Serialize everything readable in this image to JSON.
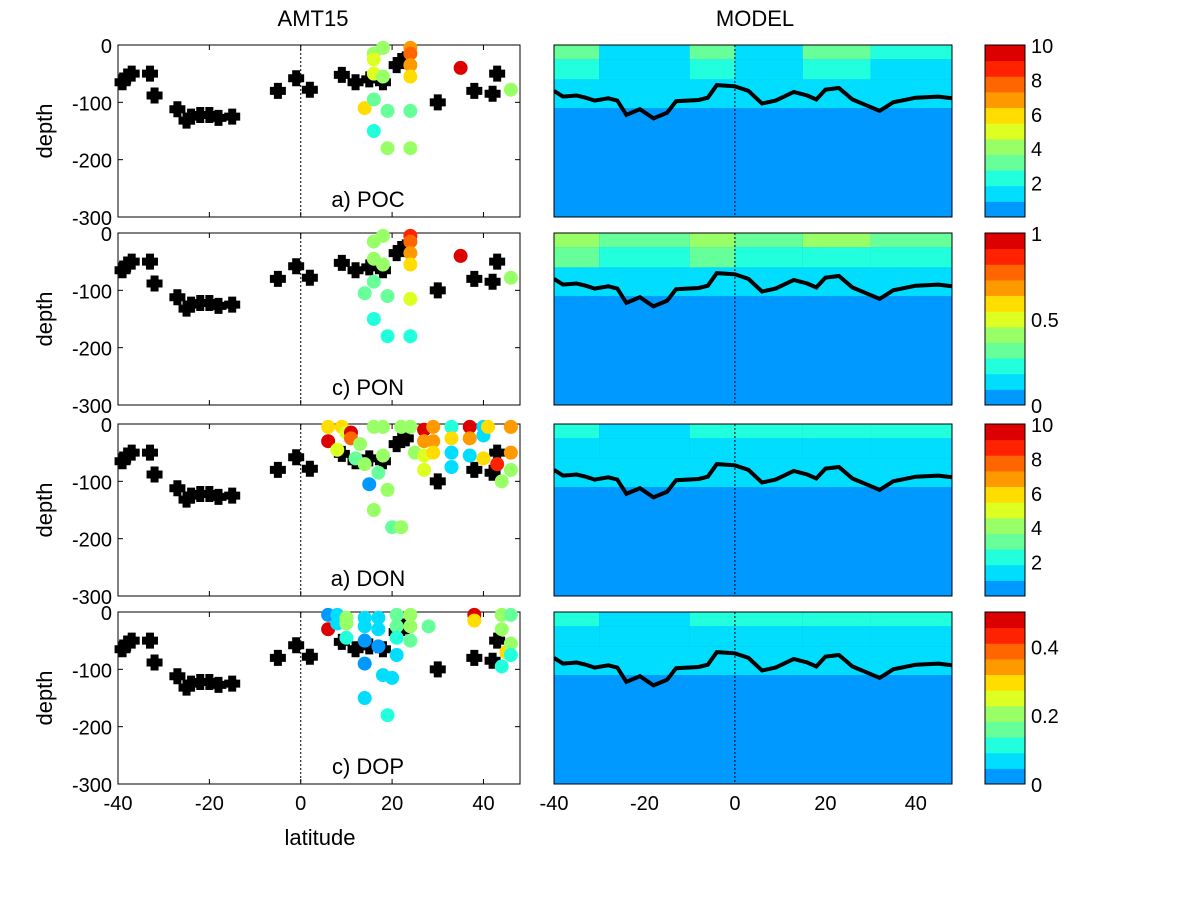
{
  "chart_data": {
    "type": "scatter",
    "column_titles": [
      "AMT15",
      "MODEL"
    ],
    "xlabel": "latitude",
    "ylabel": "depth",
    "xlim": [
      -40,
      48
    ],
    "ylim": [
      -300,
      0
    ],
    "xticks": [
      -40,
      -20,
      0,
      20,
      40
    ],
    "yticks": [
      0,
      -100,
      -200,
      -300
    ],
    "colormap": [
      "#0099ff",
      "#00ddff",
      "#22ffdd",
      "#66ff99",
      "#99ff66",
      "#ddff22",
      "#ffdd00",
      "#ff9900",
      "#ff6600",
      "#ff2200",
      "#dd0000"
    ],
    "black_markers": [
      [
        -39,
        -65
      ],
      [
        -38,
        -55
      ],
      [
        -37,
        -50
      ],
      [
        -33,
        -50
      ],
      [
        -32,
        -88
      ],
      [
        -27,
        -112
      ],
      [
        -25,
        -132
      ],
      [
        -24,
        -125
      ],
      [
        -22,
        -122
      ],
      [
        -20,
        -122
      ],
      [
        -18,
        -127
      ],
      [
        -15,
        -125
      ],
      [
        -5,
        -80
      ],
      [
        -1,
        -58
      ],
      [
        2,
        -78
      ],
      [
        9,
        -52
      ],
      [
        12,
        -65
      ],
      [
        15,
        -60
      ],
      [
        18,
        -65
      ],
      [
        21,
        -35
      ],
      [
        22,
        -28
      ],
      [
        23,
        -25
      ],
      [
        30,
        -100
      ],
      [
        38,
        -80
      ],
      [
        42,
        -85
      ],
      [
        43,
        -50
      ]
    ],
    "mld_line": [
      [
        -40,
        -80
      ],
      [
        -38,
        -90
      ],
      [
        -35,
        -88
      ],
      [
        -33,
        -92
      ],
      [
        -31,
        -97
      ],
      [
        -28,
        -93
      ],
      [
        -26,
        -97
      ],
      [
        -24,
        -122
      ],
      [
        -21,
        -112
      ],
      [
        -18,
        -128
      ],
      [
        -15,
        -118
      ],
      [
        -13,
        -98
      ],
      [
        -8,
        -96
      ],
      [
        -6,
        -92
      ],
      [
        -4,
        -70
      ],
      [
        0,
        -72
      ],
      [
        3,
        -80
      ],
      [
        6,
        -102
      ],
      [
        9,
        -97
      ],
      [
        13,
        -82
      ],
      [
        16,
        -88
      ],
      [
        18,
        -95
      ],
      [
        20,
        -78
      ],
      [
        23,
        -75
      ],
      [
        26,
        -95
      ],
      [
        29,
        -105
      ],
      [
        32,
        -115
      ],
      [
        35,
        -100
      ],
      [
        40,
        -92
      ],
      [
        45,
        -90
      ],
      [
        48,
        -93
      ]
    ],
    "panels": [
      {
        "label": "a) POC",
        "colorbar": {
          "min": 0,
          "max": 10,
          "ticks": [
            2,
            4,
            6,
            8,
            10
          ]
        },
        "obs_points": [
          [
            16,
            -15,
            4
          ],
          [
            16,
            -25,
            5
          ],
          [
            16,
            -50,
            5
          ],
          [
            18,
            -5,
            4
          ],
          [
            18,
            -55,
            4
          ],
          [
            24,
            -5,
            7
          ],
          [
            24,
            -15,
            8
          ],
          [
            24,
            -35,
            7
          ],
          [
            24,
            -55,
            6
          ],
          [
            35,
            -40,
            9.5
          ],
          [
            14,
            -110,
            6
          ],
          [
            16,
            -95,
            3
          ],
          [
            19,
            -115,
            3
          ],
          [
            24,
            -115,
            3
          ],
          [
            16,
            -150,
            2
          ],
          [
            19,
            -180,
            4
          ],
          [
            24,
            -180,
            4
          ],
          [
            46,
            -78,
            4
          ]
        ],
        "model_surface": [
          [
            -40,
            3
          ],
          [
            -30,
            1.5
          ],
          [
            -10,
            3
          ],
          [
            0,
            1.5
          ],
          [
            15,
            3
          ],
          [
            30,
            2
          ],
          [
            48,
            2
          ]
        ]
      },
      {
        "label": "c) PON",
        "colorbar": {
          "min": 0,
          "max": 1,
          "ticks": [
            0,
            0.5,
            1
          ]
        },
        "obs_points": [
          [
            16,
            -15,
            0.4
          ],
          [
            16,
            -45,
            0.4
          ],
          [
            18,
            -5,
            0.4
          ],
          [
            18,
            -55,
            0.4
          ],
          [
            24,
            -5,
            0.9
          ],
          [
            24,
            -15,
            0.8
          ],
          [
            24,
            -35,
            0.7
          ],
          [
            24,
            -55,
            0.6
          ],
          [
            35,
            -40,
            0.95
          ],
          [
            14,
            -105,
            0.35
          ],
          [
            16,
            -85,
            0.3
          ],
          [
            19,
            -110,
            0.35
          ],
          [
            24,
            -115,
            0.5
          ],
          [
            16,
            -150,
            0.2
          ],
          [
            19,
            -180,
            0.25
          ],
          [
            24,
            -180,
            0.25
          ],
          [
            46,
            -78,
            0.4
          ]
        ],
        "model_surface": [
          [
            -40,
            0.45
          ],
          [
            -30,
            0.3
          ],
          [
            -10,
            0.45
          ],
          [
            0,
            0.3
          ],
          [
            15,
            0.4
          ],
          [
            30,
            0.3
          ],
          [
            48,
            0.35
          ]
        ]
      },
      {
        "label": "a) DON",
        "colorbar": {
          "min": 0,
          "max": 10,
          "ticks": [
            2,
            4,
            6,
            8,
            10
          ]
        },
        "obs_points": [
          [
            6,
            -5,
            6
          ],
          [
            6,
            -30,
            9.5
          ],
          [
            8,
            -45,
            5
          ],
          [
            9,
            -5,
            6
          ],
          [
            10,
            -15,
            5
          ],
          [
            11,
            -15,
            9.5
          ],
          [
            11,
            -25,
            8
          ],
          [
            12,
            -60,
            3
          ],
          [
            13,
            -35,
            4
          ],
          [
            14,
            -70,
            4
          ],
          [
            15,
            -105,
            0.5
          ],
          [
            16,
            -5,
            4
          ],
          [
            16,
            -150,
            4
          ],
          [
            17,
            -85,
            3
          ],
          [
            18,
            -5,
            4
          ],
          [
            18,
            -55,
            4
          ],
          [
            19,
            -115,
            4
          ],
          [
            20,
            -180,
            3
          ],
          [
            22,
            -5,
            4
          ],
          [
            22,
            -180,
            4
          ],
          [
            24,
            -5,
            4
          ],
          [
            25,
            -50,
            4
          ],
          [
            27,
            -10,
            9.5
          ],
          [
            27,
            -30,
            7
          ],
          [
            27,
            -55,
            5
          ],
          [
            27,
            -80,
            5
          ],
          [
            29,
            -5,
            7
          ],
          [
            29,
            -30,
            7
          ],
          [
            29,
            -50,
            6
          ],
          [
            33,
            -5,
            2
          ],
          [
            33,
            -25,
            6
          ],
          [
            33,
            -50,
            1
          ],
          [
            33,
            -75,
            1
          ],
          [
            37,
            -5,
            9.5
          ],
          [
            37,
            -25,
            7
          ],
          [
            37,
            -55,
            1
          ],
          [
            40,
            -5,
            1.5
          ],
          [
            40,
            -20,
            1.5
          ],
          [
            40,
            -60,
            6
          ],
          [
            41,
            -5,
            6
          ],
          [
            43,
            -70,
            9
          ],
          [
            44,
            -100,
            4
          ],
          [
            46,
            -5,
            7
          ],
          [
            46,
            -50,
            7
          ],
          [
            46,
            -80,
            4
          ]
        ],
        "model_surface": [
          [
            -40,
            2
          ],
          [
            -30,
            1.5
          ],
          [
            -10,
            2.5
          ],
          [
            0,
            2
          ],
          [
            15,
            2
          ],
          [
            30,
            2
          ],
          [
            48,
            2
          ]
        ]
      },
      {
        "label": "c) DOP",
        "colorbar": {
          "min": 0,
          "max": 0.5,
          "ticks": [
            0,
            0.2,
            0.4
          ]
        },
        "obs_points": [
          [
            6,
            -5,
            0.02
          ],
          [
            6,
            -30,
            0.48
          ],
          [
            8,
            -5,
            0.06
          ],
          [
            8,
            -20,
            0.06
          ],
          [
            10,
            -10,
            0.2
          ],
          [
            10,
            -20,
            0.2
          ],
          [
            10,
            -45,
            0.1
          ],
          [
            14,
            -10,
            0.05
          ],
          [
            14,
            -25,
            0.05
          ],
          [
            14,
            -50,
            0.03
          ],
          [
            14,
            -90,
            0.02
          ],
          [
            14,
            -150,
            0.05
          ],
          [
            17,
            -10,
            0.08
          ],
          [
            17,
            -30,
            0.06
          ],
          [
            17,
            -60,
            0.03
          ],
          [
            18,
            -110,
            0.06
          ],
          [
            19,
            -180,
            0.1
          ],
          [
            20,
            -115,
            0.06
          ],
          [
            21,
            -5,
            0.15
          ],
          [
            21,
            -25,
            0.15
          ],
          [
            21,
            -45,
            0.1
          ],
          [
            21,
            -75,
            0.08
          ],
          [
            24,
            -5,
            0.2
          ],
          [
            24,
            -25,
            0.2
          ],
          [
            24,
            -50,
            0.15
          ],
          [
            28,
            -25,
            0.15
          ],
          [
            38,
            -5,
            0.48
          ],
          [
            38,
            -15,
            0.3
          ],
          [
            44,
            -5,
            0.2
          ],
          [
            44,
            -30,
            0.2
          ],
          [
            45,
            -70,
            0.3
          ],
          [
            46,
            -5,
            0.15
          ],
          [
            46,
            -55,
            0.2
          ],
          [
            46,
            -75,
            0.1
          ],
          [
            44,
            -95,
            0.1
          ]
        ],
        "model_surface": [
          [
            -40,
            0.1
          ],
          [
            -30,
            0.08
          ],
          [
            -10,
            0.12
          ],
          [
            0,
            0.1
          ],
          [
            15,
            0.1
          ],
          [
            30,
            0.12
          ],
          [
            48,
            0.12
          ]
        ]
      }
    ]
  }
}
